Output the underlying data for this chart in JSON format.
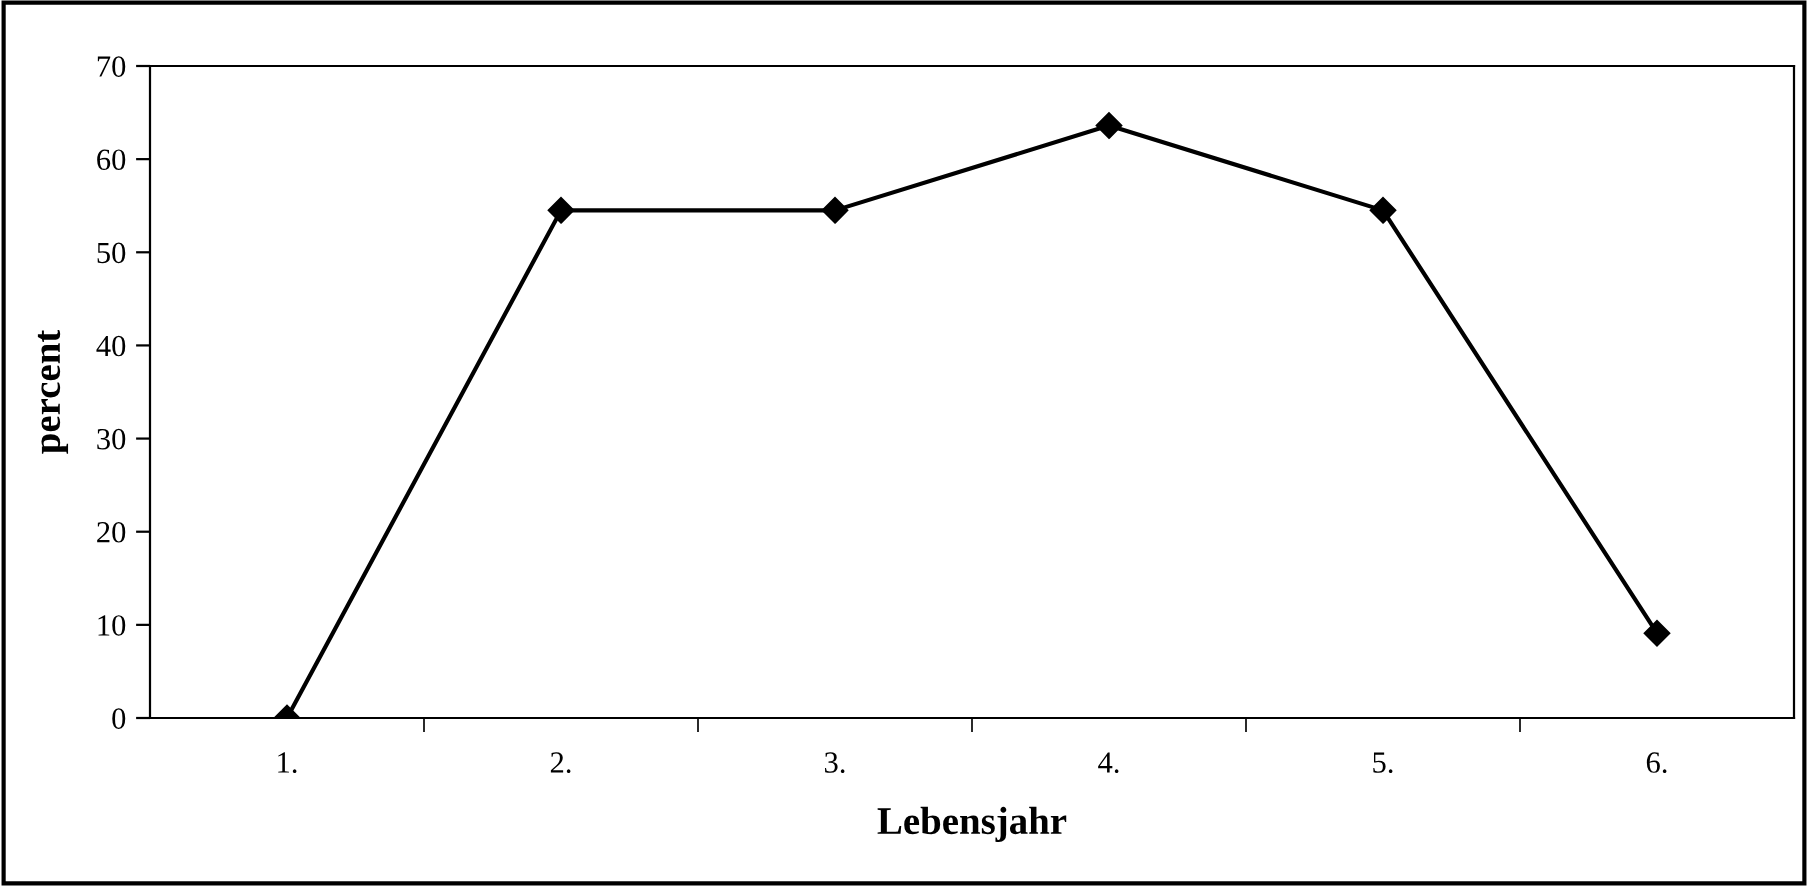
{
  "chart_data": {
    "type": "line",
    "xlabel": "Lebensjahr",
    "ylabel": "percent",
    "categories": [
      "1.",
      "2.",
      "3.",
      "4.",
      "5.",
      "6."
    ],
    "series": [
      {
        "color": "#000000",
        "values": [
          0,
          54.5,
          54.5,
          63.6,
          54.5,
          9.1
        ]
      }
    ],
    "ylim": [
      0,
      70
    ],
    "yticks": [
      0,
      10,
      20,
      30,
      40,
      50,
      60,
      70
    ],
    "marker": "diamond",
    "line_style": "solid",
    "grid": false,
    "legend": false
  }
}
